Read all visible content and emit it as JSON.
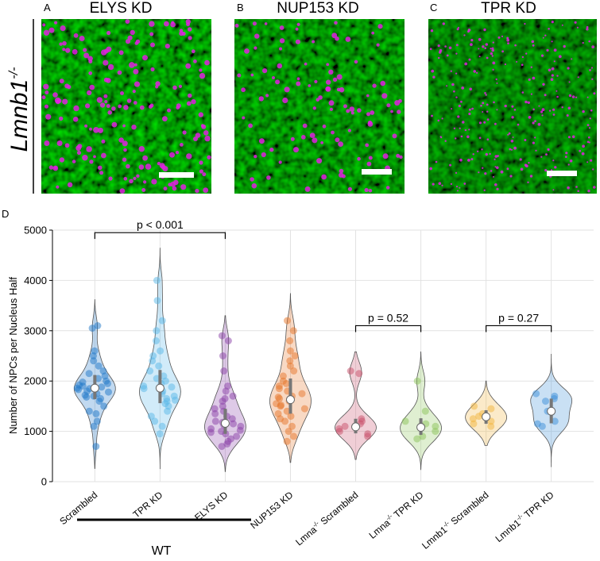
{
  "panels": [
    {
      "letter": "A",
      "title": "ELYS KD"
    },
    {
      "letter": "B",
      "title": "NUP153 KD"
    },
    {
      "letter": "C",
      "title": "TPR KD"
    }
  ],
  "row_label": {
    "base": "Lmnb1",
    "sup": "-/-"
  },
  "panel_d_letter": "D",
  "chart_data": {
    "type": "violin",
    "ylabel": "Number of NPCs per Nucleus Half",
    "ylim": [
      0,
      5000
    ],
    "yticks": [
      0,
      1000,
      2000,
      3000,
      4000,
      5000
    ],
    "grid": true,
    "categories": [
      {
        "base": "Scrambled",
        "sup": "",
        "tail": "",
        "color": "#1f78c8",
        "median": 1860,
        "q1": 1640,
        "q3": 2120,
        "min": 260,
        "max": 3620,
        "points": [
          1860,
          1900,
          1750,
          2000,
          1800,
          2100,
          1650,
          1950,
          2200,
          1700,
          1850,
          3100,
          3050,
          2600,
          2500,
          1500,
          1400,
          1200,
          1100,
          700,
          2300,
          1600,
          1780,
          1920,
          2050,
          1880,
          1720,
          2400,
          1350,
          1980,
          1830,
          1680,
          2150
        ]
      },
      {
        "base": "TPR KD",
        "sup": "",
        "tail": "",
        "color": "#5ab8e8",
        "median": 1860,
        "q1": 1560,
        "q3": 2220,
        "min": 250,
        "max": 4650,
        "points": [
          4000,
          3600,
          3200,
          2800,
          2500,
          2300,
          2200,
          2100,
          2000,
          1900,
          1850,
          1800,
          1700,
          1650,
          1600,
          1550,
          1500,
          1400,
          1300,
          1200,
          1100,
          950,
          2400,
          1750,
          1950,
          2050,
          1880,
          1620,
          2600,
          3000
        ]
      },
      {
        "base": "ELYS KD",
        "sup": "",
        "tail": "",
        "color": "#8a3fa8",
        "median": 1160,
        "q1": 950,
        "q3": 1450,
        "min": 200,
        "max": 3300,
        "points": [
          2900,
          2800,
          2500,
          2200,
          1900,
          1700,
          1600,
          1500,
          1400,
          1300,
          1250,
          1200,
          1150,
          1100,
          1050,
          1000,
          950,
          900,
          850,
          800,
          750,
          700,
          1350,
          1450,
          1120,
          980,
          1650,
          1800,
          1180,
          1020
        ]
      },
      {
        "base": "NUP153 KD",
        "sup": "",
        "tail": "",
        "color": "#e6762a",
        "median": 1630,
        "q1": 1350,
        "q3": 2050,
        "min": 380,
        "max": 3740,
        "points": [
          3200,
          3000,
          2800,
          2600,
          2400,
          2300,
          2200,
          2100,
          2000,
          1900,
          1800,
          1750,
          1700,
          1650,
          1600,
          1550,
          1500,
          1450,
          1400,
          1350,
          1300,
          1250,
          1200,
          1100,
          1000,
          900,
          800,
          1850,
          1950,
          2500,
          1680,
          1520
        ]
      },
      {
        "base": "Lmna",
        "sup": "-/-",
        "tail": " Scrambled",
        "color": "#c8506a",
        "median": 1090,
        "q1": 960,
        "q3": 1250,
        "min": 440,
        "max": 2580,
        "points": [
          2200,
          2150,
          1250,
          1200,
          1100,
          1050,
          1000,
          950,
          900,
          1150
        ]
      },
      {
        "base": "Lmna",
        "sup": "-/-",
        "tail": " TPR KD",
        "color": "#8cc45a",
        "median": 1080,
        "q1": 930,
        "q3": 1260,
        "min": 240,
        "max": 2580,
        "points": [
          2000,
          1400,
          1200,
          1100,
          1000,
          900,
          850,
          1150
        ]
      },
      {
        "base": "Lmnb1",
        "sup": "-/-",
        "tail": " Scrambled",
        "color": "#f2b43c",
        "median": 1290,
        "q1": 1150,
        "q3": 1420,
        "min": 720,
        "max": 2000,
        "points": [
          1500,
          1450,
          1300,
          1250,
          1200,
          1150,
          1100,
          1350
        ]
      },
      {
        "base": "Lmnb1",
        "sup": "-/-",
        "tail": " TPR KD",
        "color": "#3c8ed8",
        "median": 1400,
        "q1": 1160,
        "q3": 1650,
        "min": 290,
        "max": 2540,
        "points": [
          1750,
          1700,
          1650,
          1600,
          1400,
          1200,
          1150,
          1100
        ]
      }
    ],
    "comparisons": [
      {
        "from": 0,
        "to": 2,
        "label": "p < 0.001",
        "y": 4950
      },
      {
        "from": 4,
        "to": 5,
        "label": "p = 0.52",
        "y": 3100
      },
      {
        "from": 6,
        "to": 7,
        "label": "p = 0.27",
        "y": 3100
      }
    ],
    "group_label": "WT"
  }
}
